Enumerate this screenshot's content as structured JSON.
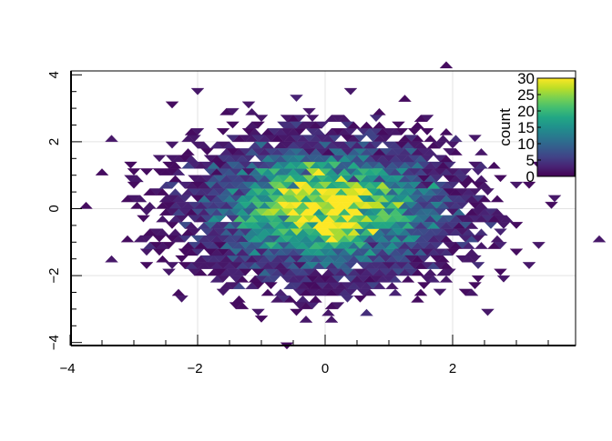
{
  "chart_data": {
    "type": "heatmap",
    "binning": "triangular",
    "title": "",
    "xlabel": "",
    "ylabel": "",
    "xlim": [
      -4,
      3.93
    ],
    "ylim": [
      -4.2,
      4.0
    ],
    "x_ticks": [
      "-4",
      "-2",
      "0",
      "2"
    ],
    "y_ticks": [
      "-4",
      "-2",
      "0",
      "2",
      "4"
    ],
    "grid": true,
    "distribution": "bivariate standard normal centered at (0, 0)",
    "legend": {
      "title": "count",
      "placement": "top-right",
      "colormap": "viridis",
      "range": [
        0,
        30
      ],
      "ticks": [
        "0",
        "5",
        "10",
        "15",
        "20",
        "25",
        "30"
      ]
    }
  }
}
